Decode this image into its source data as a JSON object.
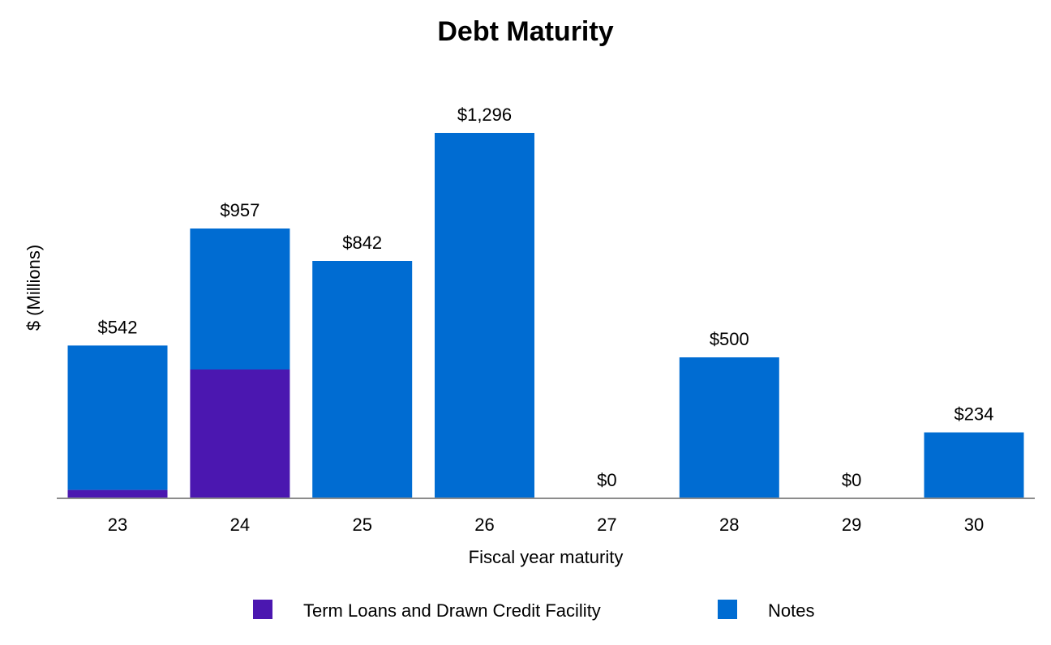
{
  "chart_data": {
    "type": "bar",
    "stacked": true,
    "title": "Debt Maturity",
    "xlabel": "Fiscal year maturity",
    "ylabel": "$ (Millions)",
    "ylim": [
      0,
      1296
    ],
    "grid": false,
    "legend_position": "bottom",
    "categories": [
      "23",
      "24",
      "25",
      "26",
      "27",
      "28",
      "29",
      "30"
    ],
    "series": [
      {
        "name": "Term Loans and Drawn Credit Facility",
        "color": "#4B17B0",
        "values": [
          30,
          457,
          0,
          0,
          0,
          0,
          0,
          0
        ]
      },
      {
        "name": "Notes",
        "color": "#006CD2",
        "values": [
          512,
          500,
          842,
          1296,
          0,
          500,
          0,
          234
        ]
      }
    ],
    "totals": [
      542,
      957,
      842,
      1296,
      0,
      500,
      0,
      234
    ],
    "total_labels": [
      "$542",
      "$957",
      "$842",
      "$1,296",
      "$0",
      "$500",
      "$0",
      "$234"
    ]
  }
}
